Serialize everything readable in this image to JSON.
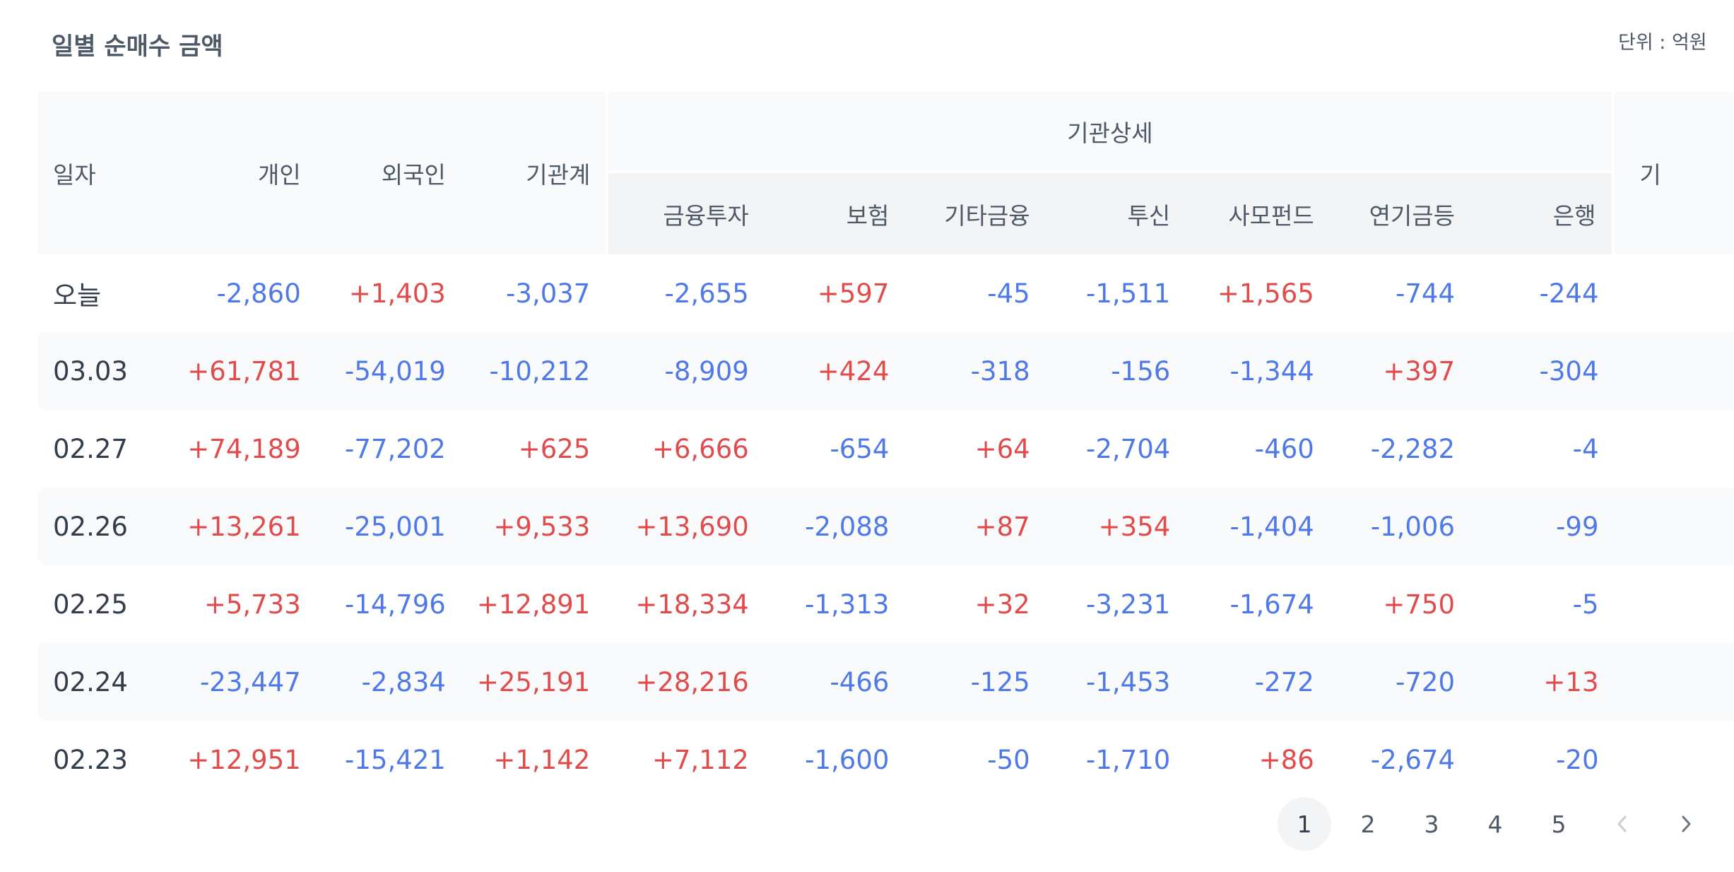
{
  "header": {
    "title": "일별 순매수 금액",
    "unit": "단위 : 억원"
  },
  "table": {
    "columns": {
      "date": "일자",
      "individual": "개인",
      "foreign": "외국인",
      "institution_total": "기관계",
      "group": "기관상세",
      "financial_investment": "금융투자",
      "insurance": "보험",
      "other_finance": "기타금융",
      "investment_trust": "투신",
      "private_fund": "사모펀드",
      "pension": "연기금등",
      "bank": "은행",
      "extra": "기"
    },
    "rows": [
      {
        "date": "오늘",
        "v": [
          "-2,860",
          "+1,403",
          "-3,037",
          "-2,655",
          "+597",
          "-45",
          "-1,511",
          "+1,565",
          "-744",
          "-244"
        ]
      },
      {
        "date": "03.03",
        "v": [
          "+61,781",
          "-54,019",
          "-10,212",
          "-8,909",
          "+424",
          "-318",
          "-156",
          "-1,344",
          "+397",
          "-304"
        ]
      },
      {
        "date": "02.27",
        "v": [
          "+74,189",
          "-77,202",
          "+625",
          "+6,666",
          "-654",
          "+64",
          "-2,704",
          "-460",
          "-2,282",
          "-4"
        ]
      },
      {
        "date": "02.26",
        "v": [
          "+13,261",
          "-25,001",
          "+9,533",
          "+13,690",
          "-2,088",
          "+87",
          "+354",
          "-1,404",
          "-1,006",
          "-99"
        ]
      },
      {
        "date": "02.25",
        "v": [
          "+5,733",
          "-14,796",
          "+12,891",
          "+18,334",
          "-1,313",
          "+32",
          "-3,231",
          "-1,674",
          "+750",
          "-5"
        ]
      },
      {
        "date": "02.24",
        "v": [
          "-23,447",
          "-2,834",
          "+25,191",
          "+28,216",
          "-466",
          "-125",
          "-1,453",
          "-272",
          "-720",
          "+13"
        ]
      },
      {
        "date": "02.23",
        "v": [
          "+12,951",
          "-15,421",
          "+1,142",
          "+7,112",
          "-1,600",
          "-50",
          "-1,710",
          "+86",
          "-2,674",
          "-20"
        ]
      }
    ]
  },
  "colors": {
    "positive": "#e14b4b",
    "negative": "#4f79e8",
    "header_bg": "#f9fafb",
    "subheader_bg": "#f2f4f6"
  },
  "pagination": {
    "pages": [
      "1",
      "2",
      "3",
      "4",
      "5"
    ],
    "current": "1",
    "prev_icon": "chevron-left-icon",
    "next_icon": "chevron-right-icon"
  }
}
